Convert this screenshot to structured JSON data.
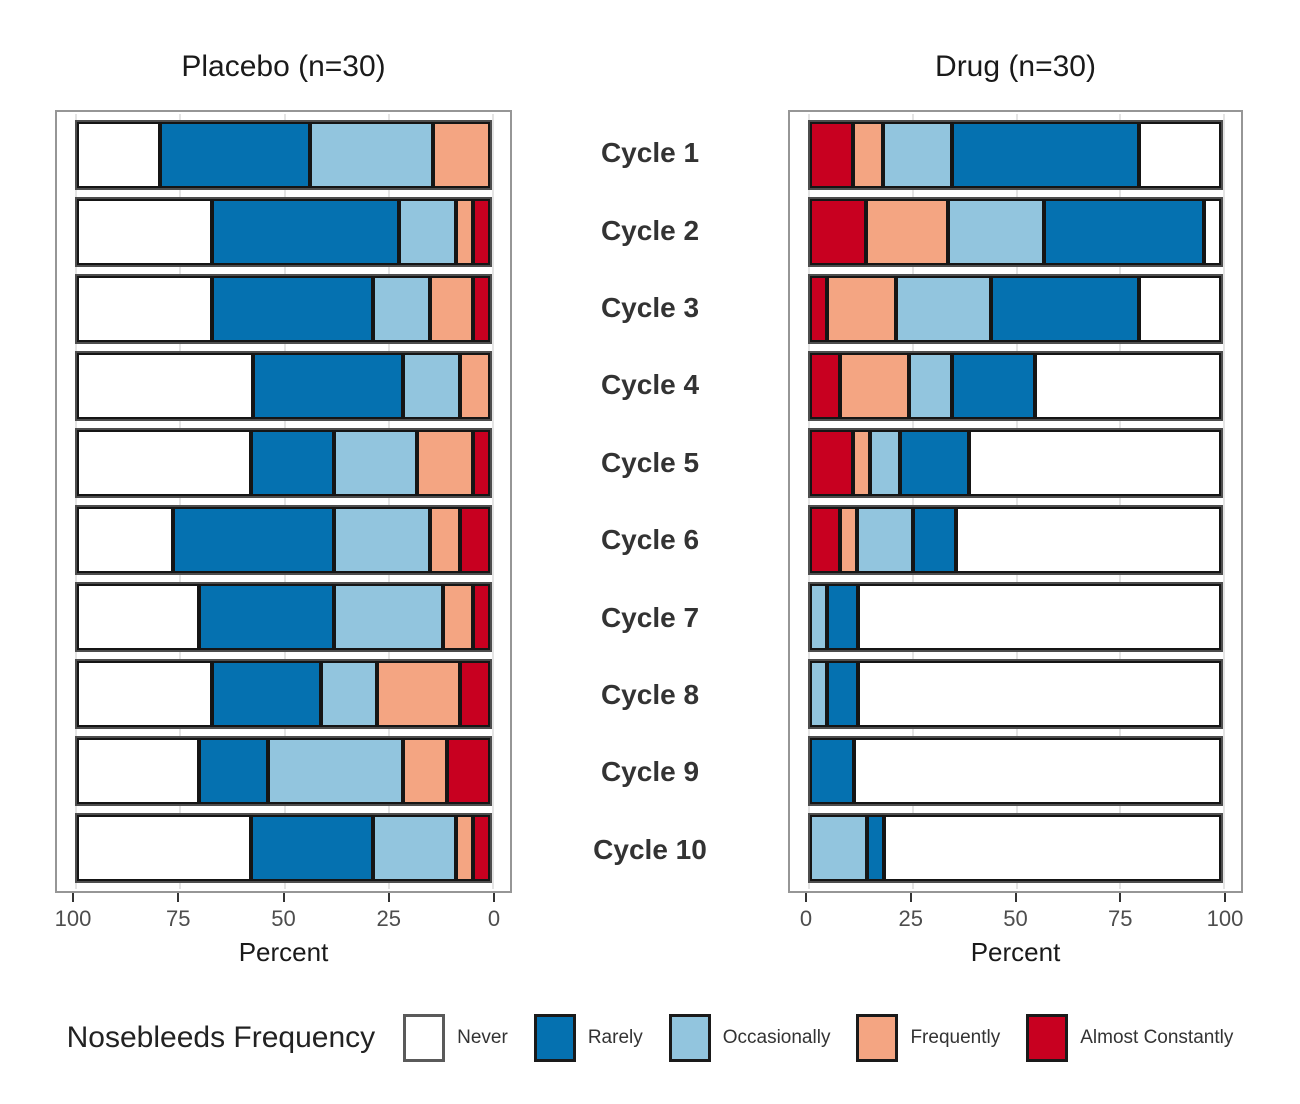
{
  "legend": {
    "title": "Nosebleeds Frequency"
  },
  "chart_data": {
    "type": "bar",
    "orientation": "horizontal_stacked",
    "stack_order_from_zero": [
      "Almost Constantly",
      "Frequently",
      "Occasionally",
      "Rarely",
      "Never"
    ],
    "categories": [
      "Cycle 1",
      "Cycle 2",
      "Cycle 3",
      "Cycle 4",
      "Cycle 5",
      "Cycle 6",
      "Cycle 7",
      "Cycle 8",
      "Cycle 9",
      "Cycle 10"
    ],
    "levels": [
      "Never",
      "Rarely",
      "Occasionally",
      "Frequently",
      "Almost Constantly"
    ],
    "colors": {
      "Never": "#ffffff",
      "Rarely": "#0571b0",
      "Occasionally": "#92c5de",
      "Frequently": "#f4a582",
      "Almost Constantly": "#c80020"
    },
    "xlim": [
      0,
      100
    ],
    "panels": [
      {
        "title": "Placebo (n=30)",
        "axis_reversed": true,
        "x_ticks": [
          100,
          75,
          50,
          25,
          0
        ],
        "xlabel": "Percent",
        "series": [
          {
            "name": "Never",
            "values": [
              20.0,
              33.33,
              33.33,
              43.33,
              43.33,
              23.33,
              30.0,
              33.33,
              30.0,
              43.33
            ]
          },
          {
            "name": "Rarely",
            "values": [
              36.67,
              46.67,
              40.0,
              36.67,
              20.0,
              40.0,
              33.33,
              26.67,
              16.67,
              30.0
            ]
          },
          {
            "name": "Occasionally",
            "values": [
              30.0,
              13.33,
              13.33,
              13.33,
              20.0,
              23.33,
              26.67,
              13.33,
              33.33,
              20.0
            ]
          },
          {
            "name": "Frequently",
            "values": [
              13.33,
              3.33,
              10.0,
              6.67,
              13.33,
              6.67,
              6.67,
              20.0,
              10.0,
              3.33
            ]
          },
          {
            "name": "Almost Constantly",
            "values": [
              0.0,
              3.33,
              3.33,
              0.0,
              3.33,
              6.67,
              3.33,
              6.67,
              10.0,
              3.33
            ]
          }
        ]
      },
      {
        "title": "Drug (n=30)",
        "axis_reversed": false,
        "x_ticks": [
          0,
          25,
          50,
          75,
          100
        ],
        "xlabel": "Percent",
        "series": [
          {
            "name": "Never",
            "values": [
              20.0,
              3.33,
              20.0,
              46.67,
              63.33,
              66.67,
              90.0,
              90.0,
              90.0,
              83.33
            ]
          },
          {
            "name": "Rarely",
            "values": [
              46.67,
              40.0,
              36.67,
              20.0,
              16.67,
              10.0,
              6.67,
              6.67,
              10.0,
              3.33
            ]
          },
          {
            "name": "Occasionally",
            "values": [
              16.67,
              23.33,
              23.33,
              10.0,
              6.67,
              13.33,
              3.33,
              3.33,
              0.0,
              13.33
            ]
          },
          {
            "name": "Frequently",
            "values": [
              6.67,
              20.0,
              16.67,
              16.67,
              3.33,
              3.33,
              0.0,
              0.0,
              0.0,
              0.0
            ]
          },
          {
            "name": "Almost Constantly",
            "values": [
              10.0,
              13.33,
              3.33,
              6.67,
              10.0,
              6.67,
              0.0,
              0.0,
              0.0,
              0.0
            ]
          }
        ]
      }
    ]
  }
}
